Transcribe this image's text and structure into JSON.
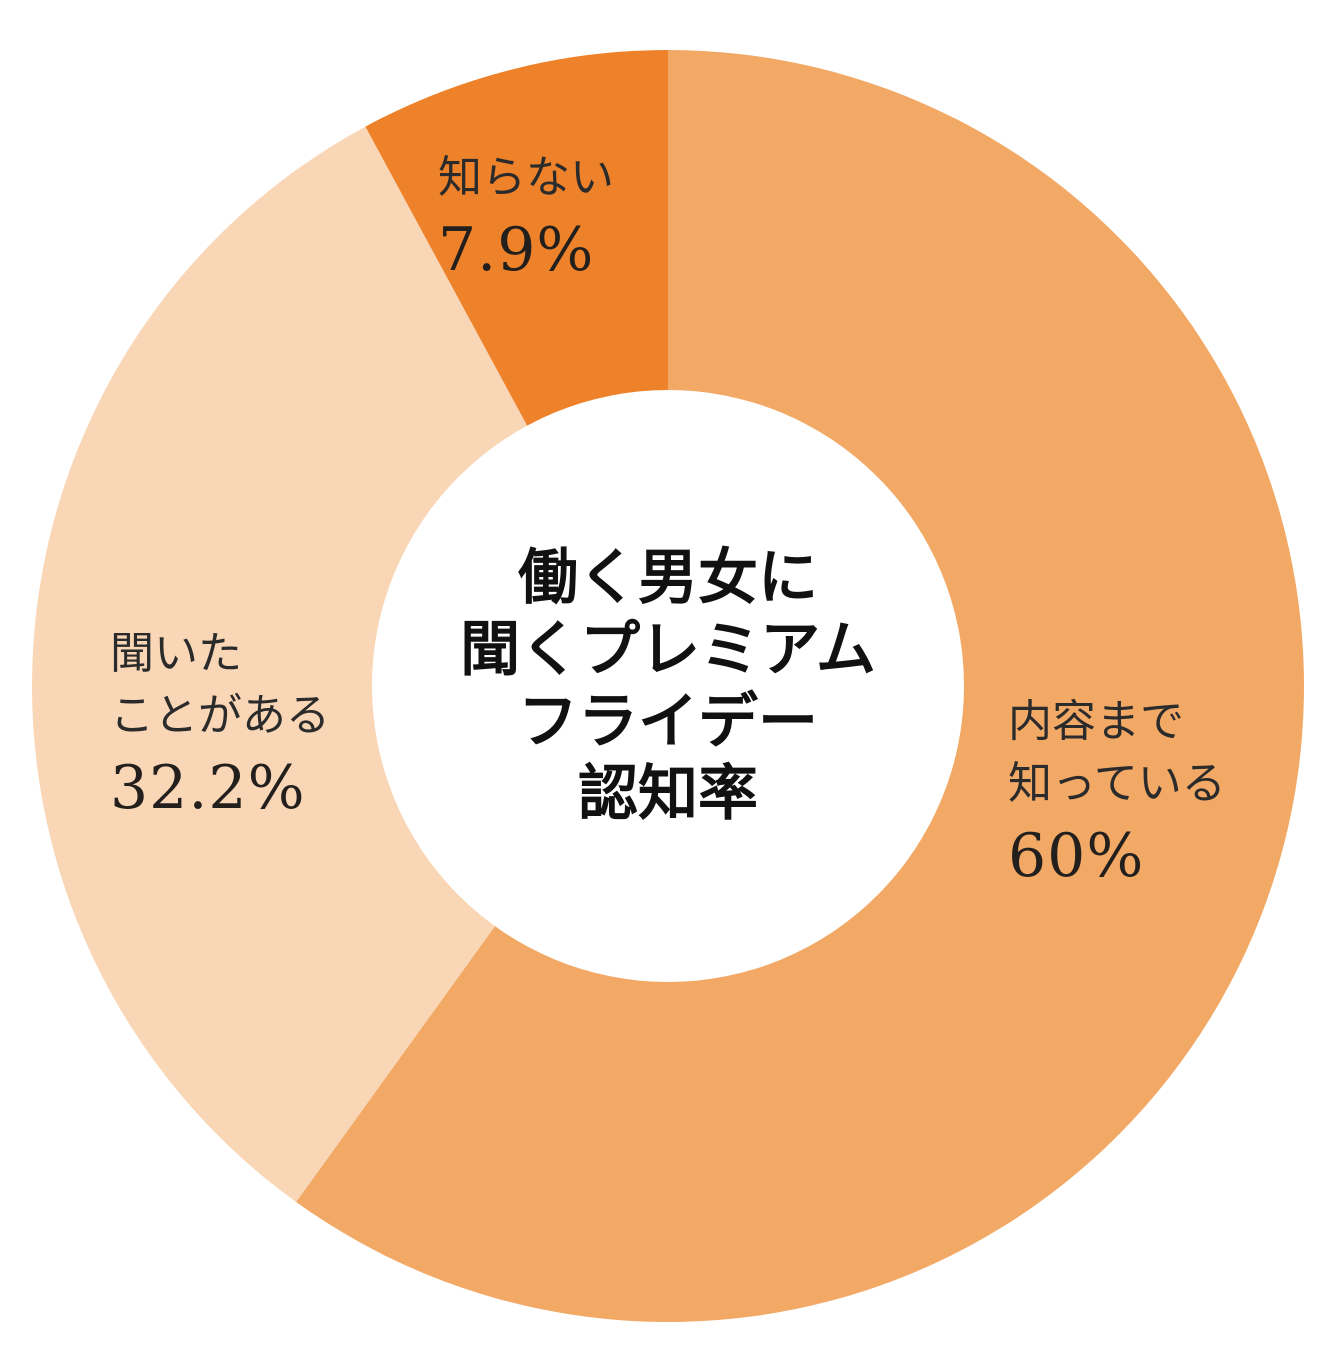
{
  "chart_data": {
    "type": "pie",
    "variant": "donut",
    "center_title_lines": [
      "働く男女に",
      "聞くプレミアム",
      "フライデー",
      "認知率"
    ],
    "start_angle": "12 o'clock",
    "direction": "clockwise",
    "unit": "%",
    "slices": [
      {
        "label_lines": [
          "内容まで",
          "知っている"
        ],
        "value": 60,
        "value_text": "60%",
        "color": "#f3a966"
      },
      {
        "label_lines": [
          "聞いた",
          "ことがある"
        ],
        "value": 32.2,
        "value_text": "32.2%",
        "color": "#f9d6b5"
      },
      {
        "label_lines": [
          "知らない"
        ],
        "value": 7.9,
        "value_text": "7.9%",
        "color": "#ee822b"
      }
    ]
  }
}
